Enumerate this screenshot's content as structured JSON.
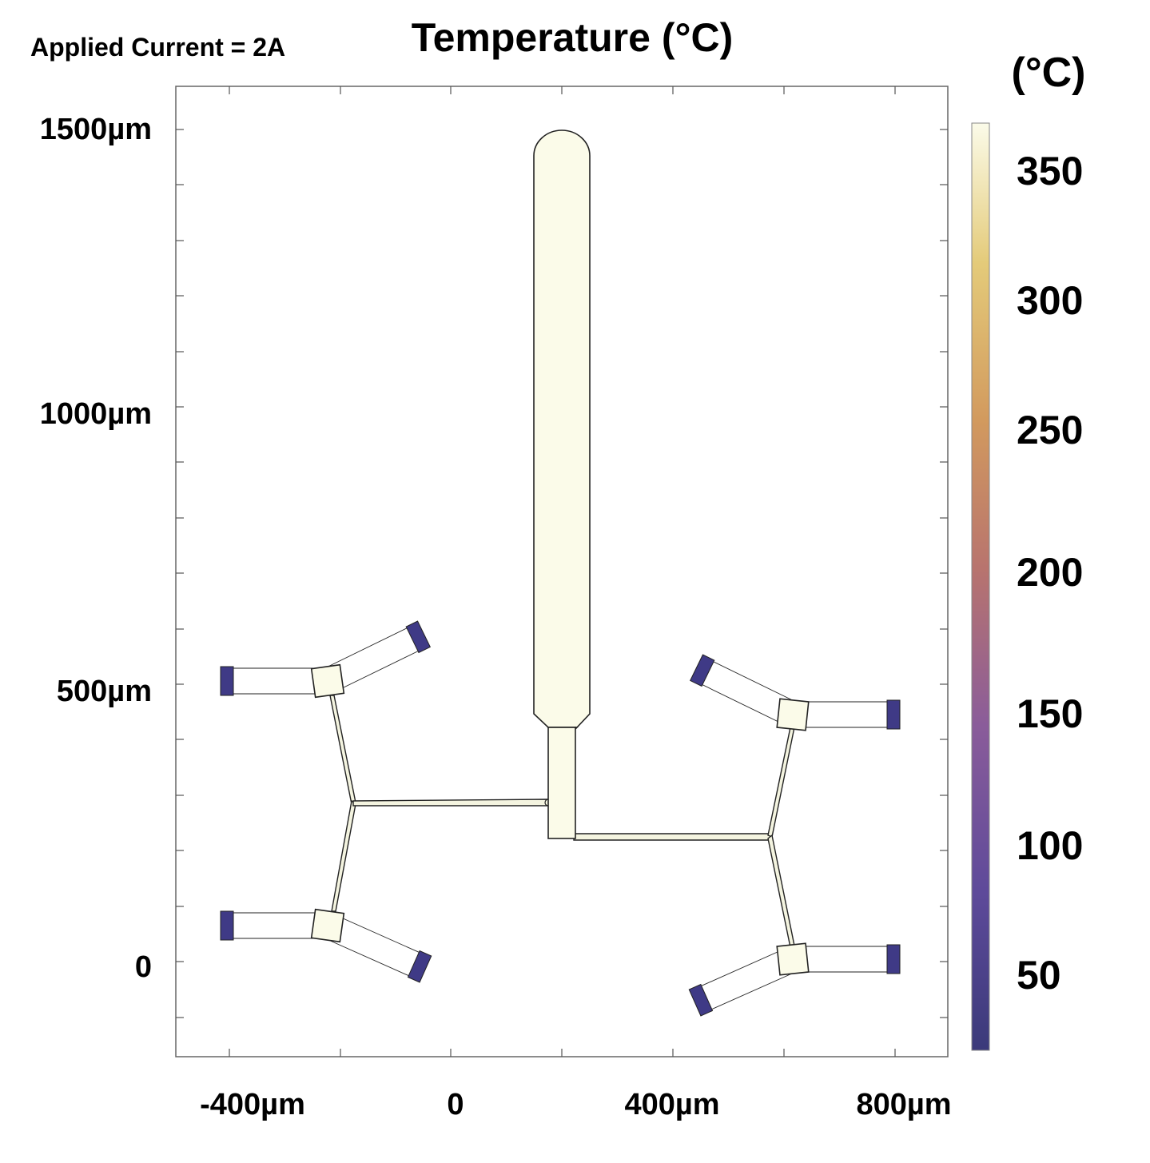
{
  "annotation": "Applied Current = 2A",
  "title": "Temperature (°C)",
  "colorbar": {
    "unit_label": "(°C)",
    "ticks": [
      "350",
      "300",
      "250",
      "200",
      "150",
      "100",
      "50"
    ],
    "tick_values": [
      350,
      300,
      250,
      200,
      150,
      100,
      50
    ],
    "range": [
      20,
      370
    ],
    "colormap": [
      "#3b3a7a",
      "#5e4a9a",
      "#8a5c9a",
      "#b8746e",
      "#d29a5e",
      "#e4cb7a",
      "#fbfbe9"
    ]
  },
  "axes": {
    "x_ticks": [
      "-400µm",
      "0",
      "400µm",
      "800µm"
    ],
    "x_tick_values": [
      -400,
      0,
      400,
      800
    ],
    "y_ticks": [
      "1500µm",
      "1000µm",
      "500µm",
      "0"
    ],
    "y_tick_values": [
      1500,
      1000,
      500,
      0
    ]
  },
  "colors": {
    "hot": "#fbfbe9",
    "cold": "#3b3a7a"
  }
}
